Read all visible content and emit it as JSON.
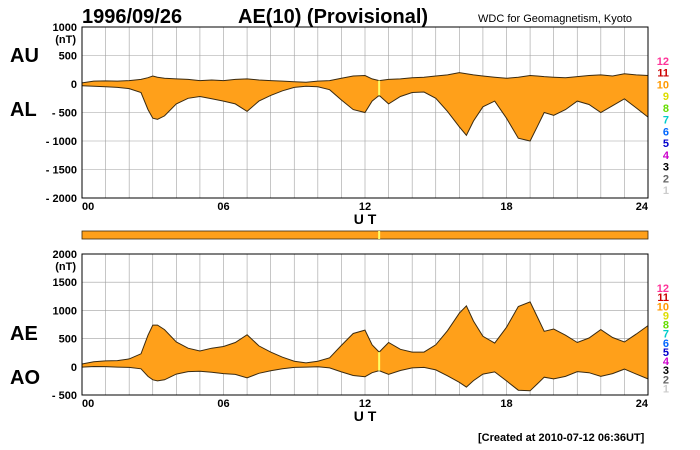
{
  "header": {
    "date": "1996/09/26",
    "title": "AE(10) (Provisional)",
    "source": "WDC for Geomagnetism, Kyoto"
  },
  "footer": {
    "created": "[Created at 2010-07-12 06:36UT]"
  },
  "colors": {
    "fill": "#ffa01a",
    "line": "#3a2a10",
    "grid": "#a0a0a0",
    "marker": "#ffff66",
    "station_colors": [
      "#ff3399",
      "#cc0000",
      "#ff9900",
      "#dddd00",
      "#66dd00",
      "#00cccc",
      "#0066ff",
      "#0000cc",
      "#cc00cc",
      "#000000",
      "#666666",
      "#cccccc"
    ]
  },
  "station_labels": [
    "12",
    "11",
    "10",
    "9",
    "8",
    "7",
    "6",
    "5",
    "4",
    "3",
    "2",
    "1"
  ],
  "chart_data": [
    {
      "type": "area",
      "name": "AU/AL",
      "ylabel": "(nT)",
      "ylim": [
        -2000,
        1000
      ],
      "yticks": [
        1000,
        500,
        0,
        -500,
        -1000,
        -1500,
        -2000
      ],
      "ytick_labels": [
        "1000",
        "500",
        "0",
        "- 500",
        "- 1000",
        "- 1500",
        "- 2000"
      ],
      "xlim": [
        0,
        24
      ],
      "xticks": [
        0,
        6,
        12,
        18,
        24
      ],
      "xtick_labels": [
        "00",
        "06",
        "12",
        "18",
        "24"
      ],
      "xlabel": "U T",
      "grid": true,
      "series_labels": [
        "AU",
        "AL"
      ],
      "marker_hour": 12.6,
      "x": [
        0,
        0.5,
        1,
        1.5,
        2,
        2.5,
        2.8,
        3,
        3.2,
        3.5,
        4,
        4.5,
        5,
        5.5,
        6,
        6.5,
        7,
        7.5,
        8,
        8.5,
        9,
        9.5,
        10,
        10.5,
        11,
        11.5,
        12,
        12.3,
        12.6,
        13,
        13.5,
        14,
        14.5,
        15,
        15.5,
        16,
        16.3,
        16.6,
        17,
        17.5,
        18,
        18.5,
        19,
        19.3,
        19.6,
        20,
        20.5,
        21,
        21.5,
        22,
        22.5,
        23,
        23.5,
        24
      ],
      "upper": [
        20,
        50,
        55,
        50,
        60,
        80,
        110,
        140,
        120,
        100,
        90,
        80,
        60,
        70,
        60,
        80,
        90,
        70,
        60,
        50,
        40,
        30,
        50,
        60,
        100,
        140,
        150,
        90,
        60,
        80,
        90,
        110,
        120,
        140,
        160,
        200,
        180,
        160,
        140,
        120,
        100,
        120,
        150,
        140,
        130,
        120,
        110,
        130,
        150,
        160,
        140,
        180,
        160,
        150
      ],
      "lower": [
        -30,
        -40,
        -50,
        -60,
        -80,
        -150,
        -450,
        -600,
        -620,
        -560,
        -350,
        -250,
        -220,
        -260,
        -300,
        -350,
        -480,
        -300,
        -200,
        -120,
        -60,
        -40,
        -50,
        -100,
        -280,
        -450,
        -500,
        -300,
        -200,
        -350,
        -220,
        -150,
        -140,
        -250,
        -480,
        -750,
        -900,
        -650,
        -400,
        -300,
        -600,
        -950,
        -1000,
        -750,
        -500,
        -550,
        -450,
        -300,
        -360,
        -500,
        -380,
        -260,
        -420,
        -580
      ]
    },
    {
      "type": "area",
      "name": "AE/AO",
      "ylabel": "(nT)",
      "ylim": [
        -500,
        2000
      ],
      "yticks": [
        2000,
        1500,
        1000,
        500,
        0,
        -500
      ],
      "ytick_labels": [
        "2000",
        "1500",
        "1000",
        "500",
        "0",
        "- 500"
      ],
      "xlim": [
        0,
        24
      ],
      "xticks": [
        0,
        6,
        12,
        18,
        24
      ],
      "xtick_labels": [
        "00",
        "06",
        "12",
        "18",
        "24"
      ],
      "xlabel": "U T",
      "grid": true,
      "series_labels": [
        "AE",
        "AO"
      ],
      "marker_hour": 12.6,
      "x": [
        0,
        0.5,
        1,
        1.5,
        2,
        2.5,
        2.8,
        3,
        3.2,
        3.5,
        4,
        4.5,
        5,
        5.5,
        6,
        6.5,
        7,
        7.5,
        8,
        8.5,
        9,
        9.5,
        10,
        10.5,
        11,
        11.5,
        12,
        12.3,
        12.6,
        13,
        13.5,
        14,
        14.5,
        15,
        15.5,
        16,
        16.3,
        16.6,
        17,
        17.5,
        18,
        18.5,
        19,
        19.3,
        19.6,
        20,
        20.5,
        21,
        21.5,
        22,
        22.5,
        23,
        23.5,
        24
      ],
      "upper": [
        50,
        90,
        105,
        110,
        140,
        230,
        560,
        740,
        740,
        660,
        440,
        330,
        280,
        330,
        360,
        430,
        570,
        370,
        260,
        170,
        100,
        70,
        100,
        160,
        380,
        590,
        650,
        390,
        260,
        430,
        310,
        260,
        260,
        390,
        640,
        950,
        1080,
        810,
        540,
        420,
        700,
        1070,
        1150,
        890,
        630,
        670,
        560,
        430,
        510,
        660,
        520,
        440,
        580,
        730
      ],
      "lower": [
        -5,
        5,
        3,
        -5,
        -10,
        -35,
        -170,
        -230,
        -250,
        -230,
        -130,
        -85,
        -80,
        -95,
        -120,
        -135,
        -195,
        -115,
        -70,
        -35,
        -10,
        -5,
        0,
        -20,
        -90,
        -155,
        -175,
        -105,
        -70,
        -135,
        -65,
        -20,
        -10,
        -55,
        -160,
        -275,
        -360,
        -245,
        -130,
        -90,
        -250,
        -415,
        -425,
        -305,
        -185,
        -215,
        -170,
        -85,
        -105,
        -170,
        -120,
        -40,
        -130,
        -215
      ]
    }
  ]
}
